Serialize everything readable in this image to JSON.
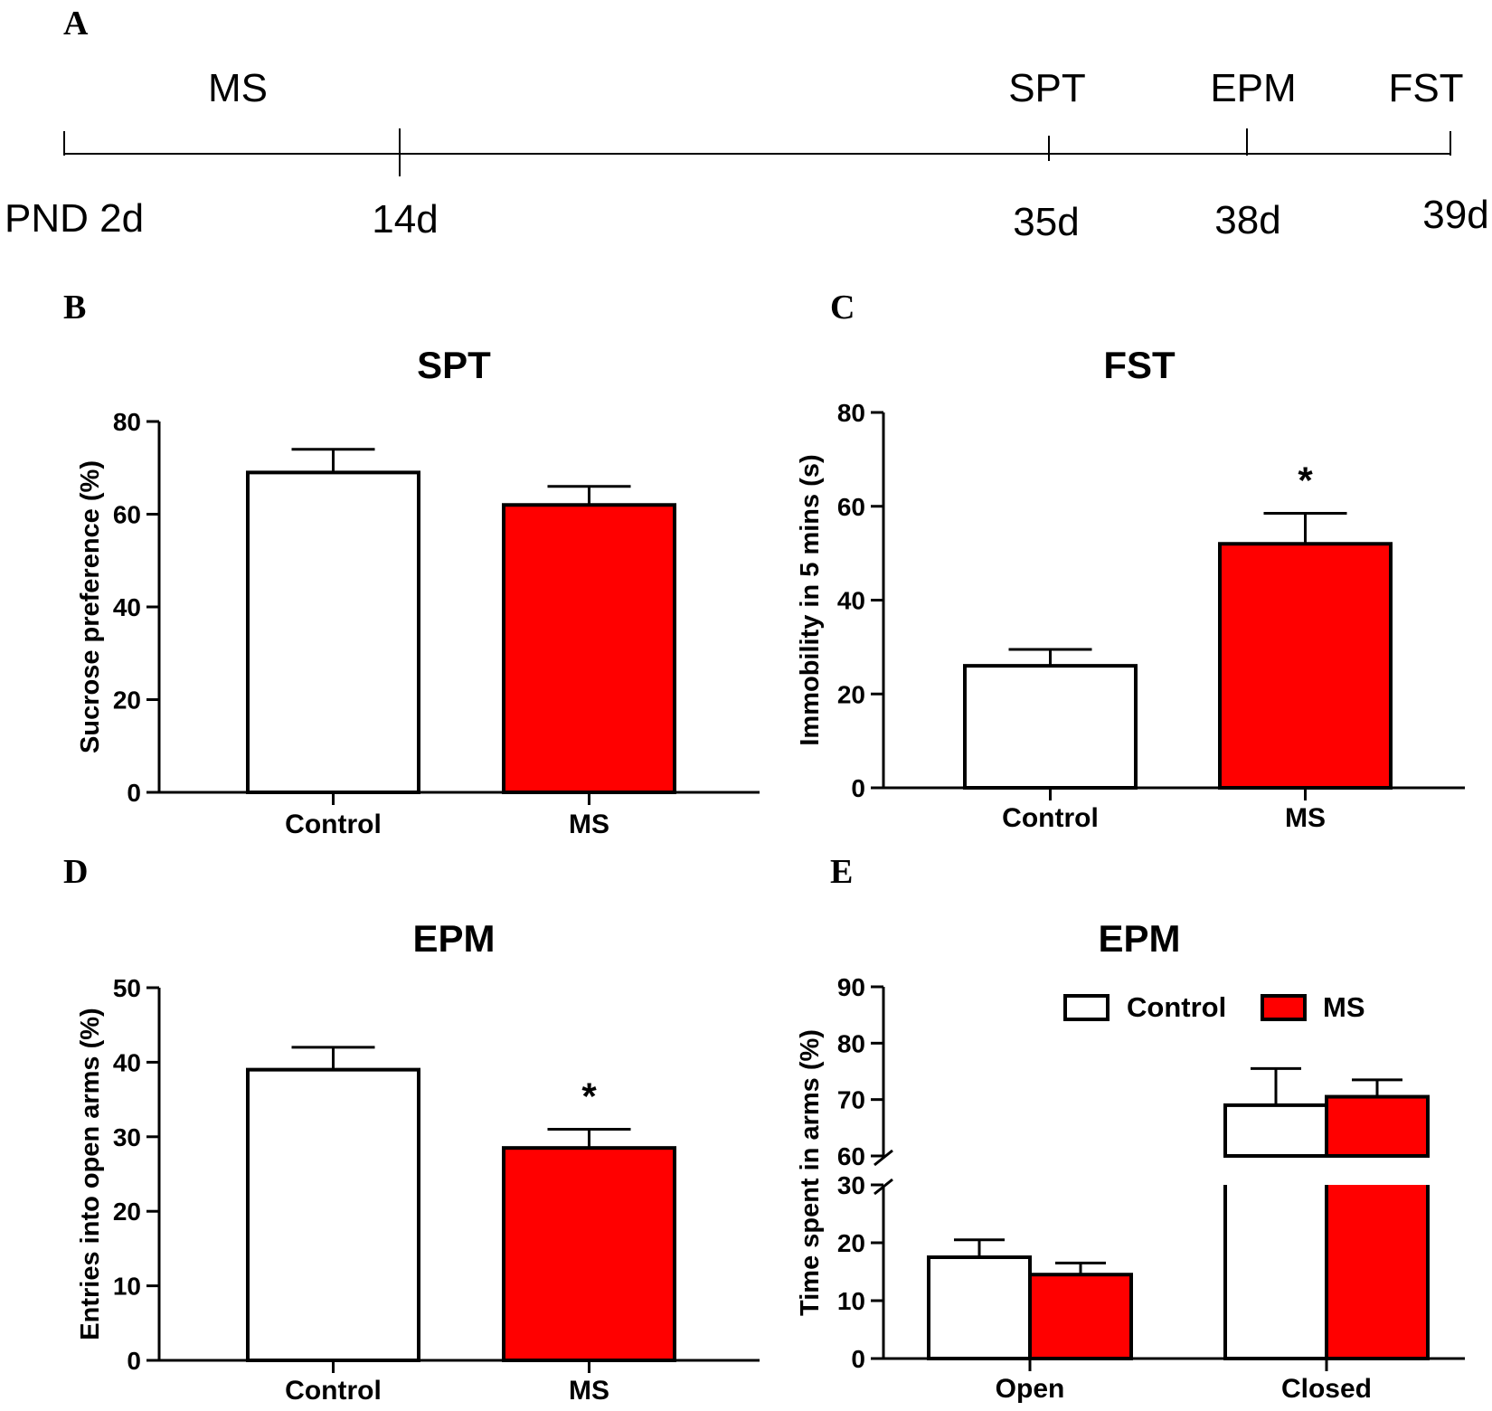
{
  "colors": {
    "control": "#ffffff",
    "ms": "#ff0000",
    "stroke": "#000000"
  },
  "timeline": {
    "panel_label": "A",
    "events": [
      {
        "label": "MS"
      },
      {
        "label": "SPT"
      },
      {
        "label": "EPM"
      },
      {
        "label": "FST"
      }
    ],
    "days": [
      "PND 2d",
      "14d",
      "35d",
      "38d",
      "39d"
    ]
  },
  "chart_data": [
    {
      "panel_label": "B",
      "type": "bar",
      "title": "SPT",
      "xlabel": "",
      "ylabel": "Sucrose preference (%)",
      "categories": [
        "Control",
        "MS"
      ],
      "values": [
        69,
        62
      ],
      "errors": [
        5,
        4
      ],
      "colors": [
        "#ffffff",
        "#ff0000"
      ],
      "ylim": [
        0,
        80
      ],
      "yticks": [
        "0",
        "20",
        "40",
        "60",
        "80"
      ],
      "significance": [
        "",
        ""
      ]
    },
    {
      "panel_label": "C",
      "type": "bar",
      "title": "FST",
      "xlabel": "",
      "ylabel": "Immobility in 5 mins (s)",
      "categories": [
        "Control",
        "MS"
      ],
      "values": [
        26,
        52
      ],
      "errors": [
        3.5,
        6.5
      ],
      "colors": [
        "#ffffff",
        "#ff0000"
      ],
      "ylim": [
        0,
        80
      ],
      "yticks": [
        "0",
        "20",
        "40",
        "60",
        "80"
      ],
      "significance": [
        "",
        "*"
      ]
    },
    {
      "panel_label": "D",
      "type": "bar",
      "title": "EPM",
      "xlabel": "",
      "ylabel": "Entries into open arms (%)",
      "categories": [
        "Control",
        "MS"
      ],
      "values": [
        39,
        28.5
      ],
      "errors": [
        3,
        2.5
      ],
      "colors": [
        "#ffffff",
        "#ff0000"
      ],
      "ylim": [
        0,
        50
      ],
      "yticks": [
        "0",
        "10",
        "20",
        "30",
        "40",
        "50"
      ],
      "significance": [
        "",
        "*"
      ]
    },
    {
      "panel_label": "E",
      "type": "bar",
      "title": "EPM",
      "xlabel": "",
      "ylabel": "Time spent in arms (%)",
      "categories": [
        "Open",
        "Closed"
      ],
      "series": [
        {
          "name": "Control",
          "color": "#ffffff",
          "values": [
            17.5,
            69
          ],
          "errors": [
            3,
            6.5
          ]
        },
        {
          "name": "MS",
          "color": "#ff0000",
          "values": [
            14.5,
            70.5
          ],
          "errors": [
            2,
            3
          ]
        }
      ],
      "axis_break": [
        30,
        60
      ],
      "ylim": [
        0,
        90
      ],
      "yticks": [
        "0",
        "10",
        "20",
        "30",
        "60",
        "70",
        "80",
        "90"
      ],
      "legend": "top-right"
    }
  ]
}
